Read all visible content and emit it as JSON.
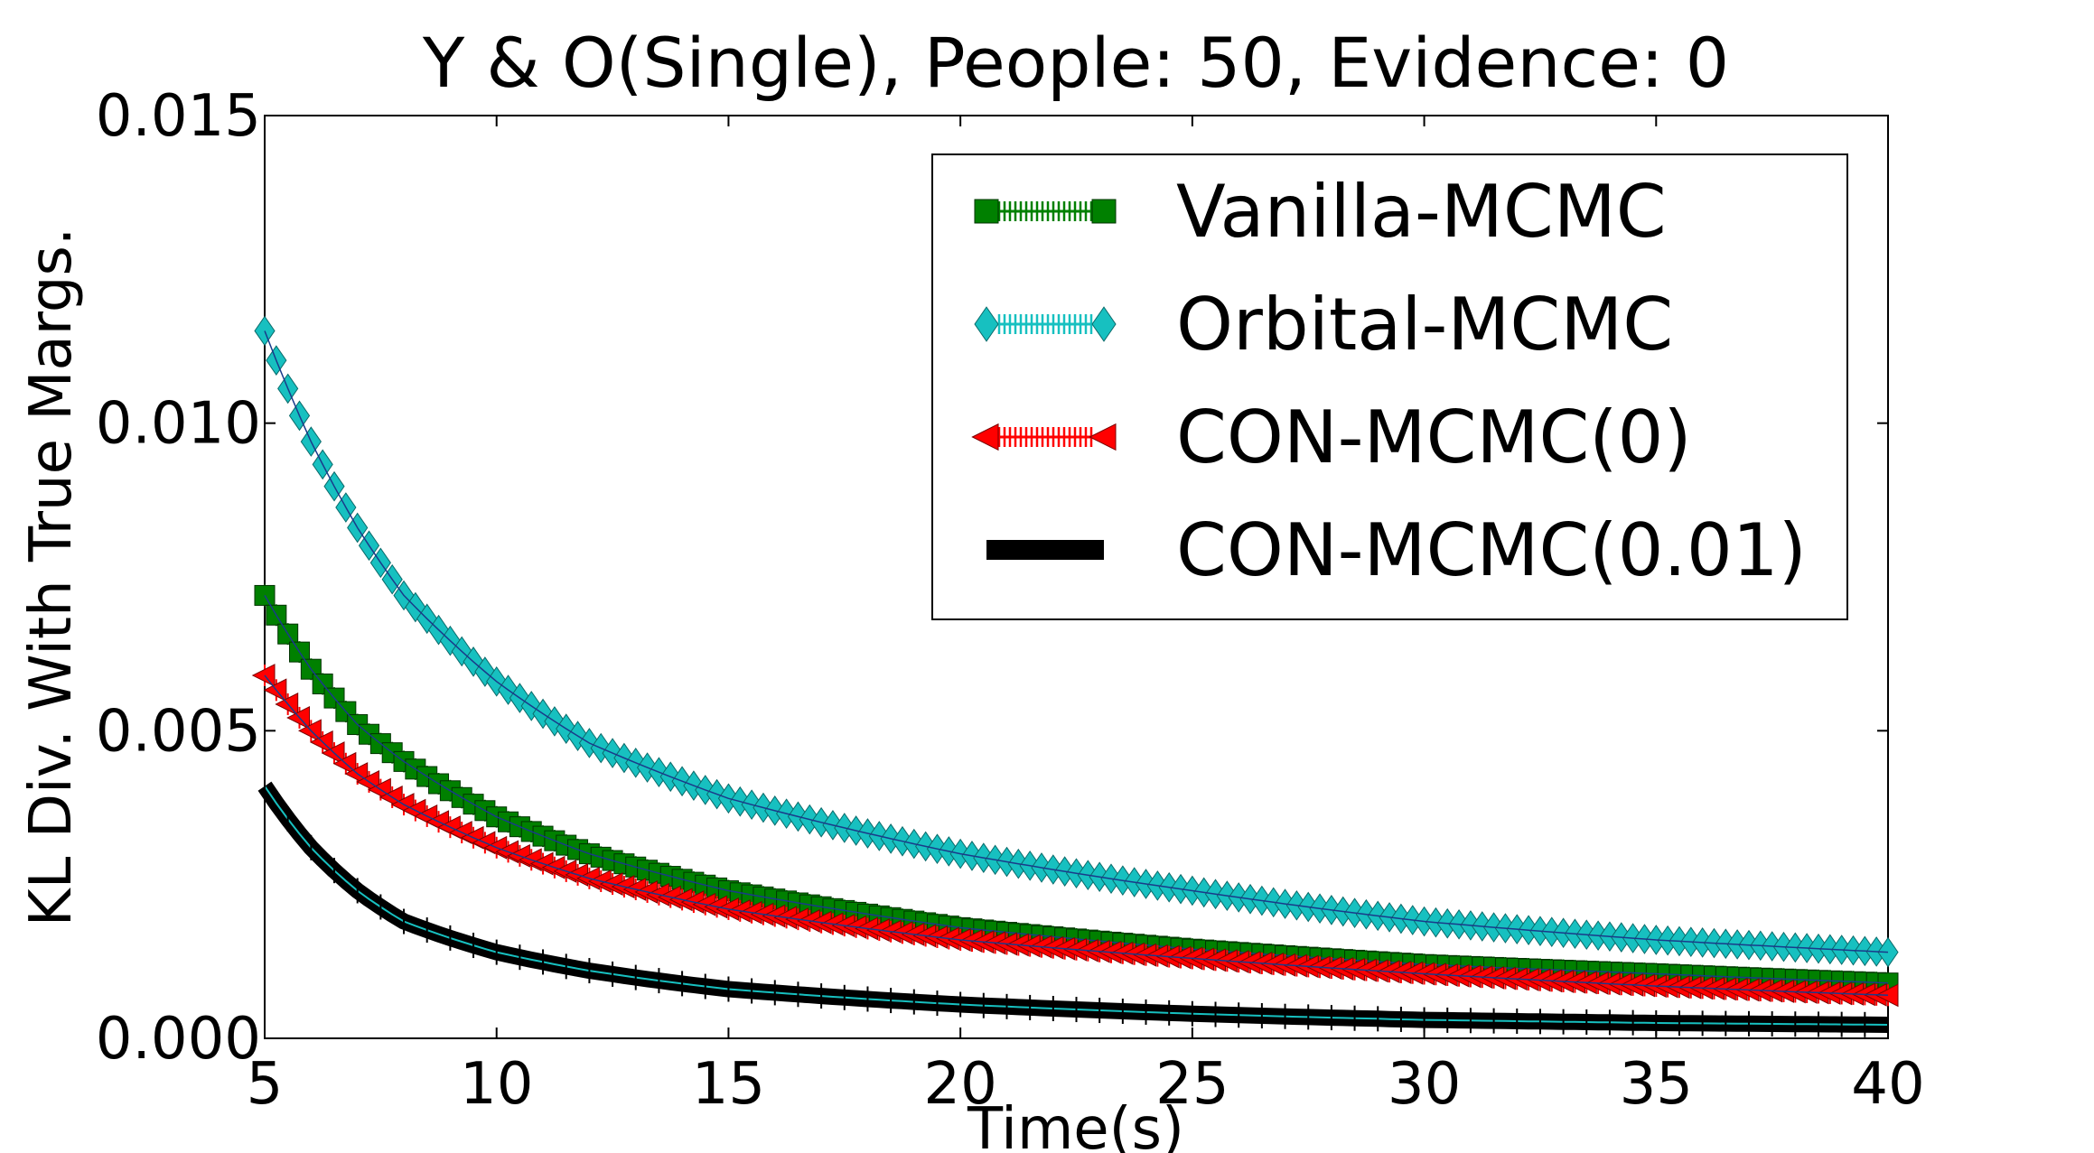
{
  "chart_data": {
    "type": "line",
    "title": "Y & O(Single), People: 50, Evidence: 0",
    "xlabel": "Time(s)",
    "ylabel": "KL Div. With True Margs.",
    "xlim": [
      5,
      40
    ],
    "ylim": [
      0.0,
      0.015
    ],
    "xticks": [
      5,
      10,
      15,
      20,
      25,
      30,
      35,
      40
    ],
    "xtick_labels": [
      "5",
      "10",
      "15",
      "20",
      "25",
      "30",
      "35",
      "40"
    ],
    "yticks": [
      0.0,
      0.005,
      0.01,
      0.015
    ],
    "ytick_labels": [
      "0.000",
      "0.005",
      "0.010",
      "0.015"
    ],
    "grid": false,
    "legend_position": "top-right",
    "x_step": 0.25,
    "series": [
      {
        "name": "Orbital-MCMC",
        "color": "#17c0c0",
        "marker": "diamond",
        "x": [
          5,
          6,
          7,
          8,
          10,
          12,
          15,
          20,
          25,
          30,
          35,
          40
        ],
        "values": [
          0.0115,
          0.0097,
          0.0083,
          0.0072,
          0.0058,
          0.0048,
          0.0039,
          0.003,
          0.0024,
          0.0019,
          0.0016,
          0.0014
        ]
      },
      {
        "name": "Vanilla-MCMC",
        "color": "#008000",
        "marker": "square",
        "x": [
          5,
          6,
          7,
          8,
          10,
          12,
          15,
          20,
          25,
          30,
          35,
          40
        ],
        "values": [
          0.0072,
          0.006,
          0.0051,
          0.0045,
          0.0036,
          0.003,
          0.0024,
          0.0018,
          0.00145,
          0.0012,
          0.00105,
          0.0009
        ]
      },
      {
        "name": "CON-MCMC(0)",
        "color": "#ff0000",
        "marker": "triangle-left",
        "x": [
          5,
          6,
          7,
          8,
          10,
          12,
          15,
          20,
          25,
          30,
          35,
          40
        ],
        "values": [
          0.0059,
          0.005,
          0.0043,
          0.0038,
          0.0031,
          0.0026,
          0.0021,
          0.0016,
          0.0013,
          0.00105,
          0.00085,
          0.0007
        ]
      },
      {
        "name": "CON-MCMC(0.01)",
        "color": "#000000",
        "line_color": "#17c0c0",
        "marker": "line",
        "x": [
          5,
          6,
          7,
          8,
          10,
          12,
          15,
          20,
          25,
          30,
          35,
          40
        ],
        "values": [
          0.0041,
          0.0031,
          0.0024,
          0.0019,
          0.0014,
          0.0011,
          0.0008,
          0.00055,
          0.0004,
          0.0003,
          0.00025,
          0.00022
        ]
      }
    ],
    "legend_order": [
      "Vanilla-MCMC",
      "Orbital-MCMC",
      "CON-MCMC(0)",
      "CON-MCMC(0.01)"
    ]
  }
}
